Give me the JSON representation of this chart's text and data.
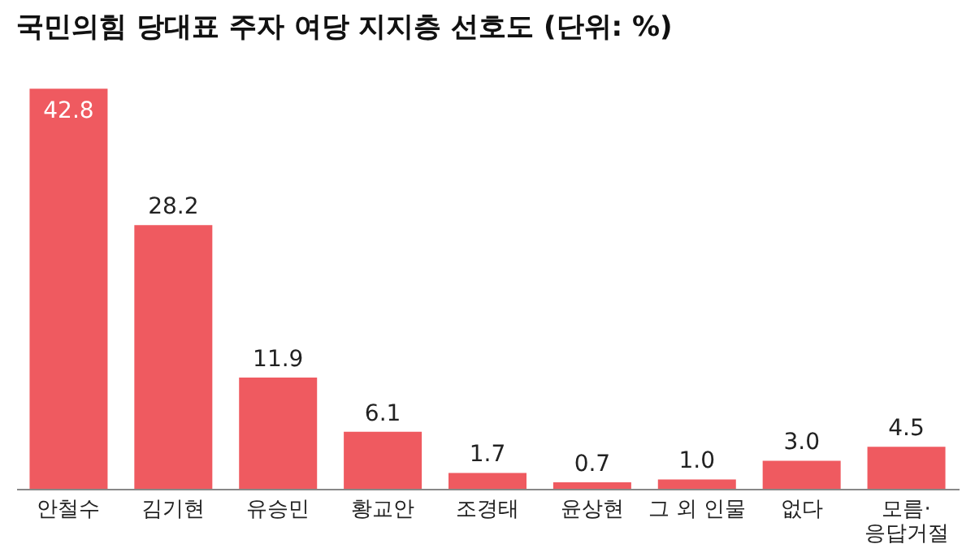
{
  "chart_data": {
    "type": "bar",
    "title": "국민의힘 당대표 주자 여당 지지층 선호도 (단위: %)",
    "categories": [
      "안철수",
      "김기현",
      "유승민",
      "황교안",
      "조경태",
      "윤상현",
      "그 외 인물",
      "없다",
      "모름·응답거절"
    ],
    "values": [
      42.8,
      28.2,
      11.9,
      6.1,
      1.7,
      0.7,
      1.0,
      3.0,
      4.5
    ],
    "value_labels": [
      "42.8",
      "28.2",
      "11.9",
      "6.1",
      "1.7",
      "0.7",
      "1.0",
      "3.0",
      "4.5"
    ],
    "color": "#ef5a60",
    "grid": false
  }
}
